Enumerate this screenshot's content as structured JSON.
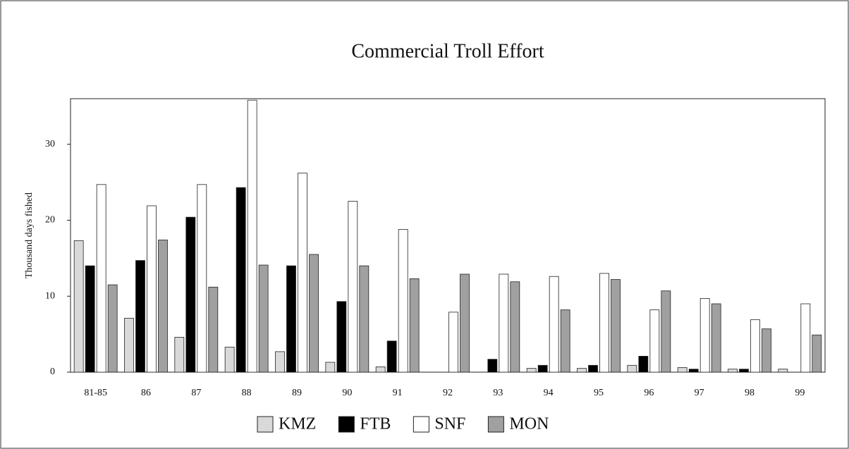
{
  "chart_data": {
    "type": "bar",
    "title": "Commercial Troll Effort",
    "y_label": "Thousand days fished",
    "categories": [
      "81-85",
      "86",
      "87",
      "88",
      "89",
      "90",
      "91",
      "92",
      "93",
      "94",
      "95",
      "96",
      "97",
      "98",
      "99"
    ],
    "series": [
      {
        "name": "KMZ",
        "color": "#d9d9d9",
        "values": [
          17.3,
          7.1,
          4.6,
          3.3,
          2.7,
          1.3,
          0.7,
          0,
          0,
          0.5,
          0.5,
          0.9,
          0.6,
          0.4,
          0.4
        ]
      },
      {
        "name": "FTB",
        "color": "#000000",
        "values": [
          14.0,
          14.7,
          20.4,
          24.3,
          14.0,
          9.3,
          4.1,
          0,
          1.7,
          0.9,
          0.9,
          2.1,
          0.4,
          0.4,
          0
        ]
      },
      {
        "name": "SNF",
        "color": "#ffffff",
        "values": [
          24.7,
          21.9,
          24.7,
          35.8,
          26.2,
          22.5,
          18.8,
          7.9,
          12.9,
          12.6,
          13.0,
          8.2,
          9.7,
          6.9,
          9.0
        ]
      },
      {
        "name": "MON",
        "color": "#a0a0a0",
        "values": [
          11.5,
          17.4,
          11.2,
          14.1,
          15.5,
          14.0,
          12.3,
          12.9,
          11.9,
          8.2,
          12.2,
          10.7,
          9.0,
          5.7,
          4.9
        ]
      }
    ],
    "ylim": [
      0,
      36
    ],
    "yticks": [
      0,
      10,
      20,
      30
    ],
    "grid": false
  }
}
